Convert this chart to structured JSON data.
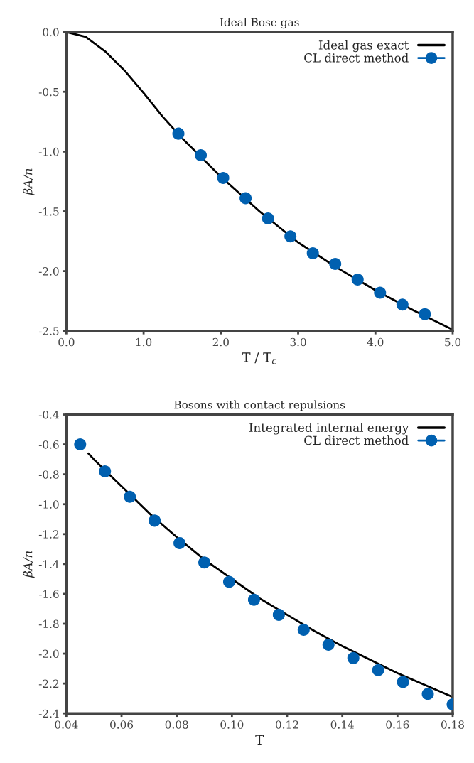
{
  "chart_data": [
    {
      "type": "line",
      "title": "Ideal Bose gas",
      "xlabel": "T / T$_{c}$",
      "ylabel": "βA/n",
      "xlim": [
        0,
        5
      ],
      "ylim": [
        -2.5,
        0
      ],
      "xticks": [
        {
          "value": 0,
          "label": "0.0"
        },
        {
          "value": 1,
          "label": "1.0"
        },
        {
          "value": 2,
          "label": "2.0"
        },
        {
          "value": 3,
          "label": "3.0"
        },
        {
          "value": 4,
          "label": "4.0"
        },
        {
          "value": 5,
          "label": "5.0"
        }
      ],
      "yticks": [
        {
          "value": 0,
          "label": "0.0"
        },
        -0.5,
        {
          "value": -1,
          "label": "-1.0"
        },
        -1.5,
        {
          "value": -2,
          "label": "-2.0"
        },
        -2.5
      ],
      "grid": false,
      "legend": "top right",
      "series": [
        {
          "name": "Ideal gas exact",
          "color": "#000000",
          "marker": "none",
          "x": [
            0,
            0.25,
            0.5,
            0.75,
            1.0,
            1.25,
            1.5,
            2.0,
            2.5,
            3.0,
            3.5,
            4.0,
            4.5,
            5.0
          ],
          "values": [
            0,
            -0.04,
            -0.16,
            -0.32,
            -0.51,
            -0.71,
            -0.89,
            -1.21,
            -1.5,
            -1.76,
            -1.97,
            -2.16,
            -2.33,
            -2.49
          ]
        },
        {
          "name": "CL direct method",
          "type": "scatter",
          "color": "#0060b0",
          "marker": "circle",
          "x": [
            1.45,
            1.74,
            2.03,
            2.32,
            2.61,
            2.9,
            3.19,
            3.48,
            3.77,
            4.06,
            4.35,
            4.64
          ],
          "values": [
            -0.85,
            -1.03,
            -1.22,
            -1.39,
            -1.56,
            -1.71,
            -1.85,
            -1.94,
            -2.07,
            -2.18,
            -2.28,
            -2.36
          ]
        }
      ]
    },
    {
      "type": "line",
      "title": "Bosons with contact repulsions",
      "xlabel": "T̄",
      "ylabel": "βA/n",
      "xlim": [
        0.04,
        0.18
      ],
      "ylim": [
        -2.4,
        -0.4
      ],
      "xticks": [
        0.04,
        0.06,
        0.08,
        {
          "value": 0.1,
          "label": "0.10"
        },
        0.12,
        0.14,
        0.16,
        0.18
      ],
      "yticks": [
        -2.4,
        -2.2,
        {
          "value": -2,
          "label": "-2.0"
        },
        -1.8,
        -1.6,
        -1.4,
        -1.2,
        {
          "value": -1,
          "label": "-1.0"
        },
        -0.8,
        -0.6,
        -0.4
      ],
      "grid": false,
      "legend": "top right",
      "series": [
        {
          "name": "Integrated internal energy",
          "color": "#000000",
          "marker": "none",
          "x": [
            0.048,
            0.05,
            0.06,
            0.07,
            0.08,
            0.09,
            0.11,
            0.12,
            0.13,
            0.14,
            0.15,
            0.16,
            0.17,
            0.18
          ],
          "values": [
            -0.66,
            -0.7,
            -0.88,
            -1.06,
            -1.22,
            -1.37,
            -1.63,
            -1.74,
            -1.85,
            -1.95,
            -2.04,
            -2.13,
            -2.21,
            -2.29
          ]
        },
        {
          "name": "CL direct method",
          "type": "scatter",
          "color": "#0060b0",
          "marker": "circle",
          "x": [
            0.045,
            0.054,
            0.063,
            0.072,
            0.081,
            0.09,
            0.099,
            0.108,
            0.117,
            0.126,
            0.135,
            0.144,
            0.153,
            0.162,
            0.171,
            0.18
          ],
          "values": [
            -0.6,
            -0.78,
            -0.95,
            -1.11,
            -1.26,
            -1.39,
            -1.52,
            -1.64,
            -1.74,
            -1.84,
            -1.94,
            -2.03,
            -2.11,
            -2.19,
            -2.27,
            -2.34
          ]
        }
      ]
    }
  ]
}
